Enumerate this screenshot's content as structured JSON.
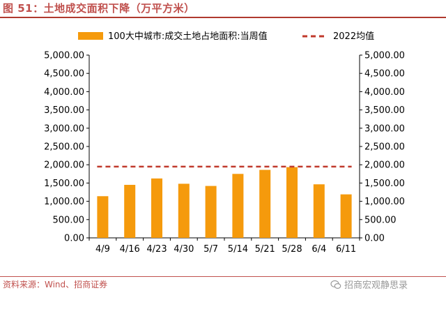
{
  "figure_title": "图 51：土地成交面积下降（万平方米）",
  "source": "资料来源：Wind、招商证券",
  "watermark": "招商宏观静思录",
  "chart_data": {
    "type": "bar",
    "categories": [
      "4/9",
      "4/16",
      "4/23",
      "4/30",
      "5/7",
      "5/14",
      "5/21",
      "5/28",
      "6/4",
      "6/11"
    ],
    "series": [
      {
        "name": "100大中城市:成交土地占地面积:当周值",
        "values": [
          1140,
          1450,
          1625,
          1480,
          1420,
          1750,
          1860,
          1935,
          1465,
          1190
        ],
        "color": "#f59a0c"
      }
    ],
    "reference_line": {
      "name": "2022均值",
      "value": 1950,
      "color": "#c0392b",
      "style": "dashed"
    },
    "ylim": [
      0,
      5000
    ],
    "yticks": [
      "0.00",
      "500.00",
      "1,000.00",
      "1,500.00",
      "2,000.00",
      "2,500.00",
      "3,000.00",
      "3,500.00",
      "4,000.00",
      "4,500.00",
      "5,000.00"
    ],
    "ytick_values": [
      0,
      500,
      1000,
      1500,
      2000,
      2500,
      3000,
      3500,
      4000,
      4500,
      5000
    ],
    "secondary_axis": true,
    "legend": "top",
    "grid": false
  }
}
